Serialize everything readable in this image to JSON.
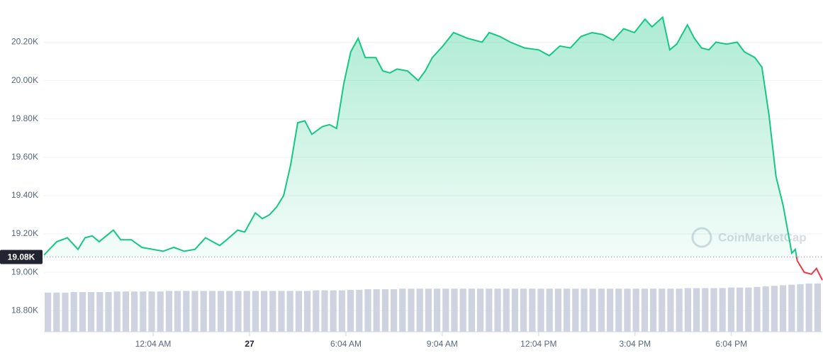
{
  "chart_data": {
    "type": "line",
    "watermark": "CoinMarketCap",
    "x": [
      -3.4,
      -3.0,
      -2.67,
      -2.34,
      -2.12,
      -1.9,
      -1.68,
      -1.46,
      -1.24,
      -1.01,
      -0.68,
      -0.35,
      -0.02,
      0.31,
      0.64,
      0.97,
      1.3,
      1.63,
      1.85,
      2.07,
      2.29,
      2.63,
      2.85,
      3.18,
      3.4,
      3.62,
      3.84,
      4.06,
      4.28,
      4.5,
      4.72,
      4.94,
      5.27,
      5.49,
      5.71,
      5.93,
      6.15,
      6.38,
      6.6,
      6.93,
      7.15,
      7.37,
      7.59,
      7.92,
      8.25,
      8.47,
      8.69,
      9.02,
      9.35,
      9.79,
      10.24,
      10.46,
      10.79,
      11.12,
      11.56,
      12.0,
      12.33,
      12.66,
      12.99,
      13.32,
      13.66,
      13.99,
      14.32,
      14.65,
      14.98,
      15.31,
      15.53,
      15.86,
      16.08,
      16.3,
      16.63,
      16.85,
      17.07,
      17.3,
      17.52,
      17.85,
      18.18,
      18.4,
      18.73,
      18.95,
      19.17,
      19.39,
      19.61,
      19.88,
      19.99,
      20.05,
      20.27,
      20.49,
      20.65,
      20.83
    ],
    "series": [
      {
        "color": "#16c784",
        "below_color": "#ea3943",
        "values": [
          19090,
          19160,
          19180,
          19120,
          19180,
          19190,
          19160,
          19190,
          19220,
          19170,
          19170,
          19130,
          19120,
          19110,
          19130,
          19110,
          19120,
          19180,
          19160,
          19140,
          19170,
          19220,
          19210,
          19310,
          19280,
          19300,
          19340,
          19400,
          19560,
          19780,
          19790,
          19720,
          19760,
          19770,
          19750,
          19980,
          20150,
          20220,
          20120,
          20120,
          20050,
          20040,
          20060,
          20050,
          20000,
          20050,
          20120,
          20180,
          20250,
          20220,
          20200,
          20250,
          20230,
          20200,
          20170,
          20160,
          20130,
          20180,
          20170,
          20230,
          20250,
          20240,
          20210,
          20270,
          20250,
          20320,
          20280,
          20330,
          20160,
          20190,
          20290,
          20220,
          20170,
          20160,
          20200,
          20190,
          20200,
          20150,
          20120,
          20070,
          19820,
          19500,
          19350,
          19100,
          19120,
          19060,
          19000,
          18990,
          19020,
          18960
        ]
      }
    ],
    "reference": {
      "value": 19080,
      "label": "19.08K"
    },
    "xlim": [
      -3.4,
      20.83
    ],
    "xticks": [
      {
        "value": 0,
        "label": "12:04 AM"
      },
      {
        "value": 3,
        "label": "27"
      },
      {
        "value": 6,
        "label": "6:04 AM"
      },
      {
        "value": 9,
        "label": "9:04 AM"
      },
      {
        "value": 12,
        "label": "12:04 PM"
      },
      {
        "value": 15,
        "label": "3:04 PM"
      },
      {
        "value": 18,
        "label": "6:04 PM"
      }
    ],
    "ylim": [
      18690,
      20420
    ],
    "yticks": [
      {
        "value": 18800,
        "label": "18.80K"
      },
      {
        "value": 19000,
        "label": "19.00K"
      },
      {
        "value": 19200,
        "label": "19.20K"
      },
      {
        "value": 19400,
        "label": "19.40K"
      },
      {
        "value": 19600,
        "label": "19.60K"
      },
      {
        "value": 19800,
        "label": "19.80K"
      },
      {
        "value": 20000,
        "label": "20.00K"
      },
      {
        "value": 20200,
        "label": "20.20K"
      }
    ],
    "grid": true,
    "volume": {
      "color": "#cfd3df",
      "lim": [
        0,
        100
      ],
      "values": [
        69,
        69,
        69,
        70,
        70,
        70,
        70,
        70,
        71,
        71,
        71,
        71,
        71,
        71,
        72,
        72,
        72,
        72,
        72,
        72,
        72,
        72,
        72,
        72,
        72,
        72,
        72,
        72,
        72,
        72,
        72,
        73,
        73,
        73,
        73,
        74,
        74,
        75,
        75,
        75,
        75,
        76,
        76,
        76,
        76,
        76,
        76,
        76,
        76,
        76,
        76,
        76,
        76,
        76,
        76,
        76,
        76,
        76,
        76,
        76,
        76,
        76,
        76,
        76,
        76,
        76,
        76,
        76,
        76,
        76,
        76,
        76,
        76,
        76,
        77,
        77,
        77,
        77,
        77,
        78,
        78,
        78,
        79,
        80,
        81,
        82,
        83,
        84,
        85,
        85
      ]
    }
  }
}
